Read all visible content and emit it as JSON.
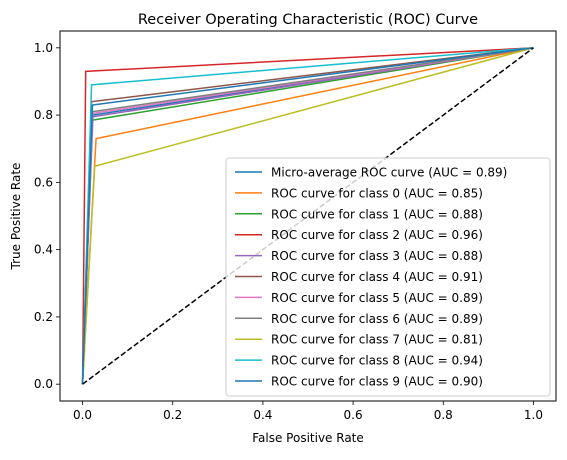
{
  "chart_data": {
    "type": "line",
    "title": "Receiver Operating Characteristic (ROC) Curve",
    "xlabel": "False Positive Rate",
    "ylabel": "True Positive Rate",
    "xlim": [
      -0.05,
      1.05
    ],
    "ylim": [
      -0.05,
      1.05
    ],
    "xticks": [
      0.0,
      0.2,
      0.4,
      0.6,
      0.8,
      1.0
    ],
    "yticks": [
      0.0,
      0.2,
      0.4,
      0.6,
      0.8,
      1.0
    ],
    "xtick_labels": [
      "0.0",
      "0.2",
      "0.4",
      "0.6",
      "0.8",
      "1.0"
    ],
    "ytick_labels": [
      "0.0",
      "0.2",
      "0.4",
      "0.6",
      "0.8",
      "1.0"
    ],
    "grid": false,
    "legend_position": "lower-right",
    "series": [
      {
        "name": "Micro-average ROC curve (AUC = 0.89)",
        "color": "#1f77b4",
        "x": [
          0.0,
          0.022,
          1.0
        ],
        "y": [
          0.0,
          0.8,
          1.0
        ]
      },
      {
        "name": "ROC curve for class 0 (AUC = 0.85)",
        "color": "#ff7f0e",
        "x": [
          0.0,
          0.03,
          1.0
        ],
        "y": [
          0.0,
          0.73,
          1.0
        ]
      },
      {
        "name": "ROC curve for class 1 (AUC = 0.88)",
        "color": "#2ca02c",
        "x": [
          0.0,
          0.022,
          1.0
        ],
        "y": [
          0.0,
          0.785,
          1.0
        ]
      },
      {
        "name": "ROC curve for class 2 (AUC = 0.96)",
        "color": "#d62728",
        "x": [
          0.0,
          0.007,
          1.0
        ],
        "y": [
          0.0,
          0.93,
          1.0
        ]
      },
      {
        "name": "ROC curve for class 3 (AUC = 0.88)",
        "color": "#9467bd",
        "x": [
          0.0,
          0.023,
          1.0
        ],
        "y": [
          0.0,
          0.795,
          1.0
        ]
      },
      {
        "name": "ROC curve for class 4 (AUC = 0.91)",
        "color": "#8c564b",
        "x": [
          0.0,
          0.02,
          1.0
        ],
        "y": [
          0.0,
          0.84,
          1.0
        ]
      },
      {
        "name": "ROC curve for class 5 (AUC = 0.89)",
        "color": "#e377c2",
        "x": [
          0.0,
          0.022,
          1.0
        ],
        "y": [
          0.0,
          0.805,
          1.0
        ]
      },
      {
        "name": "ROC curve for class 6 (AUC = 0.89)",
        "color": "#7f7f7f",
        "x": [
          0.0,
          0.021,
          1.0
        ],
        "y": [
          0.0,
          0.81,
          1.0
        ]
      },
      {
        "name": "ROC curve for class 7 (AUC = 0.81)",
        "color": "#bcbd22",
        "x": [
          0.0,
          0.027,
          1.0
        ],
        "y": [
          0.0,
          0.648,
          1.0
        ]
      },
      {
        "name": "ROC curve for class 8 (AUC = 0.94)",
        "color": "#17becf",
        "x": [
          0.0,
          0.02,
          1.0
        ],
        "y": [
          0.0,
          0.89,
          1.0
        ]
      },
      {
        "name": "ROC curve for class 9 (AUC = 0.90)",
        "color": "#1f77b4",
        "x": [
          0.0,
          0.022,
          1.0
        ],
        "y": [
          0.0,
          0.83,
          1.0
        ]
      }
    ],
    "reference_line": {
      "x": [
        0.0,
        1.0
      ],
      "y": [
        0.0,
        1.0
      ],
      "color": "#000000",
      "style": "dashed"
    }
  }
}
